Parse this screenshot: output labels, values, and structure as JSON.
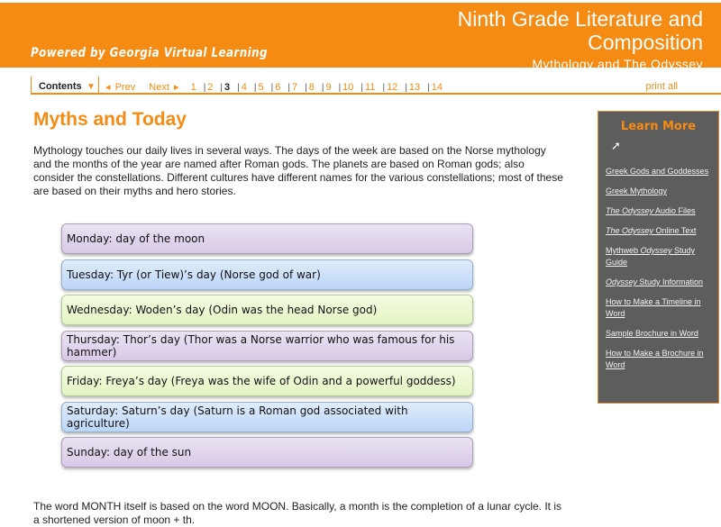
{
  "header": {
    "powered": "Powered by Georgia Virtual Learning",
    "title": "Ninth Grade Literature and Composition",
    "subtitle": "Mythology and The Odyssey"
  },
  "nav": {
    "contents": "Contents",
    "prev": "Prev",
    "next": "Next",
    "pages": [
      "1",
      "2",
      "3",
      "4",
      "5",
      "6",
      "7",
      "8",
      "9",
      "10",
      "11",
      "12",
      "13",
      "14"
    ],
    "current_page": "3",
    "print": "print all"
  },
  "main": {
    "title": "Myths and Today",
    "intro": "Mythology touches our daily lives in several ways. The days of the week are based on the Norse mythology and the months of the year are named after Roman gods.  The planets are based on Roman gods; also consider the constellations.  Different cultures have different names for the various constellations; most of these are based on their myths and hero stories.",
    "days": [
      {
        "text": "Monday: day of the moon",
        "color": "purple"
      },
      {
        "text": "Tuesday: Tyr (or Tiew)’s day (Norse god of war)",
        "color": "blue"
      },
      {
        "text": "Wednesday: Woden’s day (Odin was the head Norse god)",
        "color": "green"
      },
      {
        "text": "Thursday: Thor’s day (Thor was a Norse warrior  who was famous for his hammer)",
        "color": "purple"
      },
      {
        "text": "Friday: Freya’s day (Freya was the wife of Odin and a powerful goddess)",
        "color": "green"
      },
      {
        "text": "Saturday: Saturn’s day (Saturn is a Roman god associated with agriculture)",
        "color": "blue"
      },
      {
        "text": "Sunday: day of the sun",
        "color": "purple"
      }
    ],
    "outro": "The word MONTH itself is based on the word MOON.  Basically, a month is the completion of a lunar cycle.  It is a shortened version of moon + th."
  },
  "sidebar": {
    "title": "Learn More",
    "links": [
      [
        {
          "t": "Greek Gods and Goddesses",
          "i": false
        }
      ],
      [
        {
          "t": "Greek Mythology",
          "i": false
        }
      ],
      [
        {
          "t": "The Odyssey",
          "i": true
        },
        {
          "t": " Audio Files",
          "i": false
        }
      ],
      [
        {
          "t": "The Odyssey",
          "i": true
        },
        {
          "t": " Online Text",
          "i": false
        }
      ],
      [
        {
          "t": "Mythweb ",
          "i": false
        },
        {
          "t": "Odyssey",
          "i": true
        },
        {
          "t": " Study Guide",
          "i": false
        }
      ],
      [
        {
          "t": "Odyssey",
          "i": true
        },
        {
          "t": " Study Information",
          "i": false
        }
      ],
      [
        {
          "t": "How to Make a Timeline in Word",
          "i": false
        }
      ],
      [
        {
          "t": "Sample Brochure in Word",
          "i": false
        }
      ],
      [
        {
          "t": "How to Make a Brochure in Word",
          "i": false
        }
      ]
    ]
  },
  "colors": {
    "accent": "#f68b13",
    "sidebar_bg": "#5d5d5d"
  }
}
